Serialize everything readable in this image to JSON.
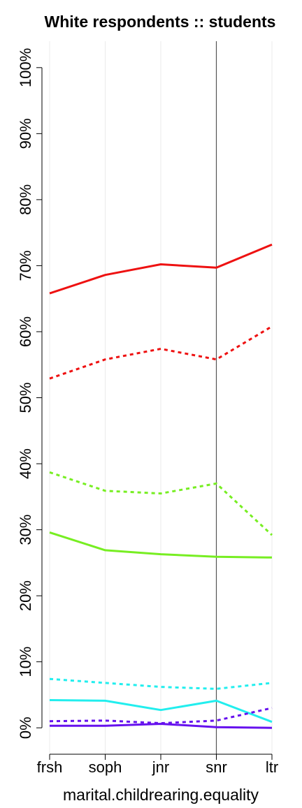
{
  "chart_data": {
    "type": "line",
    "title": "White respondents :: students",
    "xlabel": "marital.childrearing.equality",
    "ylabel": "",
    "categories": [
      "frsh",
      "soph",
      "jnr",
      "snr",
      "ltr"
    ],
    "ylim": [
      -4,
      104
    ],
    "yticks": [
      0,
      10,
      20,
      30,
      40,
      50,
      60,
      70,
      80,
      90,
      100
    ],
    "ytick_labels": [
      "0%",
      "10%",
      "20%",
      "30%",
      "40%",
      "50%",
      "60%",
      "70%",
      "80%",
      "90%",
      "100%"
    ],
    "vertical_reference_category": "snr",
    "grid": "vertical-light",
    "legend": "none",
    "series": [
      {
        "color": "#ee1111",
        "dash": "solid",
        "values": [
          65.8,
          68.6,
          70.2,
          69.7,
          73.2
        ]
      },
      {
        "color": "#ee1111",
        "dash": "dotted",
        "values": [
          52.9,
          55.8,
          57.4,
          55.8,
          60.8
        ]
      },
      {
        "color": "#77ee22",
        "dash": "dotted",
        "values": [
          38.7,
          35.9,
          35.5,
          37.0,
          29.2
        ]
      },
      {
        "color": "#77ee22",
        "dash": "solid",
        "values": [
          29.6,
          26.9,
          26.3,
          25.9,
          25.8
        ]
      },
      {
        "color": "#22eeee",
        "dash": "dotted",
        "values": [
          7.4,
          6.8,
          6.2,
          5.9,
          6.8
        ]
      },
      {
        "color": "#22eeee",
        "dash": "solid",
        "values": [
          4.2,
          4.1,
          2.7,
          4.1,
          0.9
        ]
      },
      {
        "color": "#6611ee",
        "dash": "dotted",
        "values": [
          1.0,
          1.1,
          0.7,
          1.1,
          3.0
        ]
      },
      {
        "color": "#6611ee",
        "dash": "solid",
        "values": [
          0.3,
          0.3,
          0.6,
          0.1,
          0.0
        ]
      }
    ]
  }
}
